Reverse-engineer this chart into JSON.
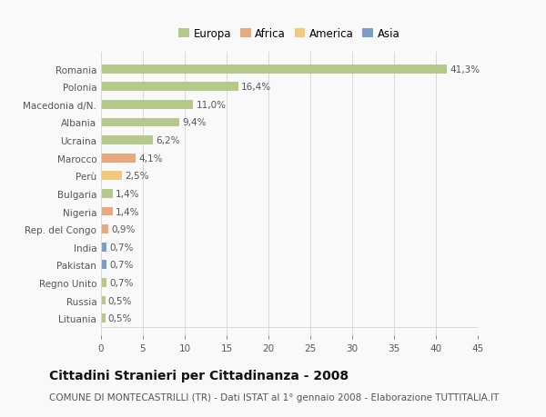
{
  "categories": [
    "Romania",
    "Polonia",
    "Macedonia d/N.",
    "Albania",
    "Ucraina",
    "Marocco",
    "Perù",
    "Bulgaria",
    "Nigeria",
    "Rep. del Congo",
    "India",
    "Pakistan",
    "Regno Unito",
    "Russia",
    "Lituania"
  ],
  "values": [
    41.3,
    16.4,
    11.0,
    9.4,
    6.2,
    4.1,
    2.5,
    1.4,
    1.4,
    0.9,
    0.7,
    0.7,
    0.7,
    0.5,
    0.5
  ],
  "labels": [
    "41,3%",
    "16,4%",
    "11,0%",
    "9,4%",
    "6,2%",
    "4,1%",
    "2,5%",
    "1,4%",
    "1,4%",
    "0,9%",
    "0,7%",
    "0,7%",
    "0,7%",
    "0,5%",
    "0,5%"
  ],
  "bar_colors": [
    "#b5c98a",
    "#b5c98a",
    "#b5c98a",
    "#b5c98a",
    "#b5c98a",
    "#e8a97e",
    "#f0c97a",
    "#b5c98a",
    "#e8a97e",
    "#e8a97e",
    "#7a9fc4",
    "#7a9fc4",
    "#b5c98a",
    "#b5c98a",
    "#b5c98a"
  ],
  "continent_colors": {
    "Europa": "#b5c98a",
    "Africa": "#e8a97e",
    "America": "#f0c97a",
    "Asia": "#7a9fc4"
  },
  "legend_labels": [
    "Europa",
    "Africa",
    "America",
    "Asia"
  ],
  "title": "Cittadini Stranieri per Cittadinanza - 2008",
  "subtitle": "COMUNE DI MONTECASTRILLI (TR) - Dati ISTAT al 1° gennaio 2008 - Elaborazione TUTTITALIA.IT",
  "xlim": [
    0,
    45
  ],
  "xticks": [
    0,
    5,
    10,
    15,
    20,
    25,
    30,
    35,
    40,
    45
  ],
  "background_color": "#f9f9f9",
  "grid_color": "#d8d8d8",
  "bar_height": 0.5,
  "title_fontsize": 10,
  "subtitle_fontsize": 7.5,
  "label_fontsize": 7.5,
  "tick_fontsize": 7.5,
  "legend_fontsize": 8.5
}
